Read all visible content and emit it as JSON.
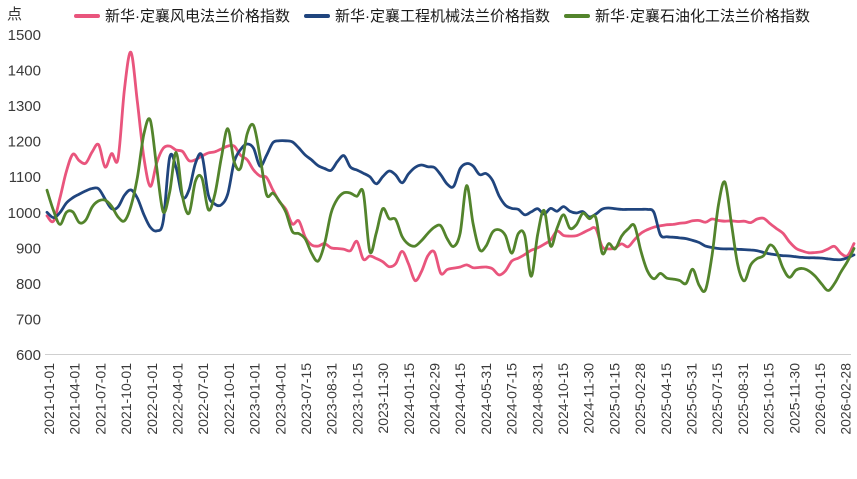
{
  "unit_label": "点",
  "chart_data": {
    "type": "line",
    "title": "",
    "xlabel": "",
    "ylabel": "点",
    "ylim": [
      600,
      1500
    ],
    "y_ticks": [
      600,
      700,
      800,
      900,
      1000,
      1100,
      1200,
      1300,
      1400,
      1500
    ],
    "grid": false,
    "legend_position": "top",
    "baseline_color": "#cfcfcf",
    "x_tick_labels": [
      "2021-01-01",
      "2021-04-01",
      "2021-07-01",
      "2021-10-01",
      "2022-01-01",
      "2022-04-01",
      "2022-07-01",
      "2022-10-01",
      "2023-01-01",
      "2023-04-01",
      "2023-07-15",
      "2023-08-31",
      "2023-10-15",
      "2023-11-30",
      "2024-01-15",
      "2024-02-29",
      "2024-04-15",
      "2024-05-31",
      "2024-07-15",
      "2024-08-31",
      "2024-10-15",
      "2024-11-30",
      "2025-01-15",
      "2025-02-28",
      "2025-04-15",
      "2025-05-31",
      "2025-07-15",
      "2025-08-31",
      "2025-10-15",
      "2025-11-30",
      "2026-01-15",
      "2026-02-28"
    ],
    "note": "series values sampled at uniform intervals from 2021-01-01 to 2026-02-28",
    "series": [
      {
        "name": "新华·定襄风电法兰价格指数",
        "color": "#e9557d",
        "values": [
          990,
          975,
          1040,
          1115,
          1163,
          1145,
          1138,
          1170,
          1190,
          1127,
          1165,
          1150,
          1347,
          1450,
          1310,
          1155,
          1073,
          1140,
          1180,
          1186,
          1175,
          1171,
          1145,
          1148,
          1158,
          1167,
          1170,
          1178,
          1186,
          1186,
          1160,
          1148,
          1119,
          1102,
          1098,
          1062,
          1030,
          1008,
          967,
          976,
          930,
          908,
          905,
          912,
          900,
          898,
          896,
          892,
          918,
          868,
          877,
          870,
          861,
          847,
          855,
          890,
          855,
          808,
          833,
          878,
          888,
          828,
          839,
          843,
          846,
          852,
          844,
          845,
          846,
          841,
          824,
          835,
          863,
          871,
          881,
          893,
          900,
          910,
          922,
          947,
          935,
          933,
          934,
          942,
          951,
          954,
          903,
          897,
          900,
          911,
          903,
          923,
          941,
          951,
          958,
          962,
          965,
          966,
          969,
          971,
          976,
          977,
          972,
          981,
          977,
          975,
          976,
          974,
          975,
          971,
          981,
          983,
          968,
          954,
          941,
          917,
          899,
          891,
          886,
          887,
          889,
          897,
          904,
          884,
          878,
          912
        ]
      },
      {
        "name": "新华·定襄工程机械法兰价格指数",
        "color": "#20457e",
        "values": [
          1000,
          985,
          999,
          1026,
          1041,
          1051,
          1060,
          1067,
          1066,
          1037,
          1010,
          1015,
          1048,
          1063,
          1040,
          994,
          958,
          948,
          975,
          1155,
          1125,
          1043,
          1063,
          1138,
          1160,
          1048,
          1023,
          1021,
          1052,
          1142,
          1177,
          1192,
          1180,
          1130,
          1160,
          1196,
          1201,
          1201,
          1198,
          1181,
          1161,
          1147,
          1131,
          1123,
          1118,
          1143,
          1159,
          1127,
          1119,
          1110,
          1100,
          1080,
          1100,
          1116,
          1105,
          1083,
          1108,
          1126,
          1133,
          1128,
          1126,
          1105,
          1079,
          1073,
          1123,
          1137,
          1130,
          1106,
          1109,
          1090,
          1047,
          1020,
          1011,
          1008,
          993,
          1001,
          1010,
          995,
          1011,
          1003,
          1016,
          1003,
          998,
          1002,
          987,
          995,
          1009,
          1012,
          1010,
          1008,
          1008,
          1008,
          1008,
          1008,
          1000,
          937,
          931,
          930,
          928,
          926,
          921,
          915,
          905,
          901,
          898,
          897,
          897,
          896,
          895,
          894,
          892,
          887,
          883,
          880,
          878,
          877,
          875,
          873,
          872,
          872,
          871,
          869,
          867,
          867,
          872,
          880
        ]
      },
      {
        "name": "新华·定襄石油化工法兰价格指数",
        "color": "#53842c",
        "values": [
          1062,
          1005,
          966,
          1000,
          1001,
          971,
          978,
          1015,
          1032,
          1034,
          1017,
          987,
          976,
          1017,
          1098,
          1219,
          1259,
          1124,
          1001,
          1057,
          1168,
          1043,
          997,
          1088,
          1096,
          1007,
          1051,
          1153,
          1235,
          1142,
          1125,
          1220,
          1244,
          1157,
          1050,
          1054,
          1031,
          1000,
          946,
          940,
          925,
          884,
          863,
          912,
          998,
          1038,
          1055,
          1054,
          1045,
          1055,
          890,
          942,
          1010,
          982,
          980,
          932,
          910,
          905,
          920,
          941,
          958,
          962,
          925,
          904,
          942,
          1075,
          968,
          895,
          905,
          944,
          951,
          935,
          885,
          940,
          935,
          820,
          938,
          1005,
          905,
          955,
          993,
          955,
          965,
          997,
          982,
          985,
          885,
          912,
          897,
          933,
          953,
          962,
          890,
          835,
          813,
          828,
          815,
          812,
          808,
          800,
          840,
          795,
          782,
          878,
          1020,
          1085,
          970,
          852,
          807,
          852,
          870,
          878,
          908,
          890,
          843,
          817,
          837,
          842,
          835,
          820,
          798,
          780,
          800,
          833,
          862,
          898
        ]
      }
    ]
  }
}
